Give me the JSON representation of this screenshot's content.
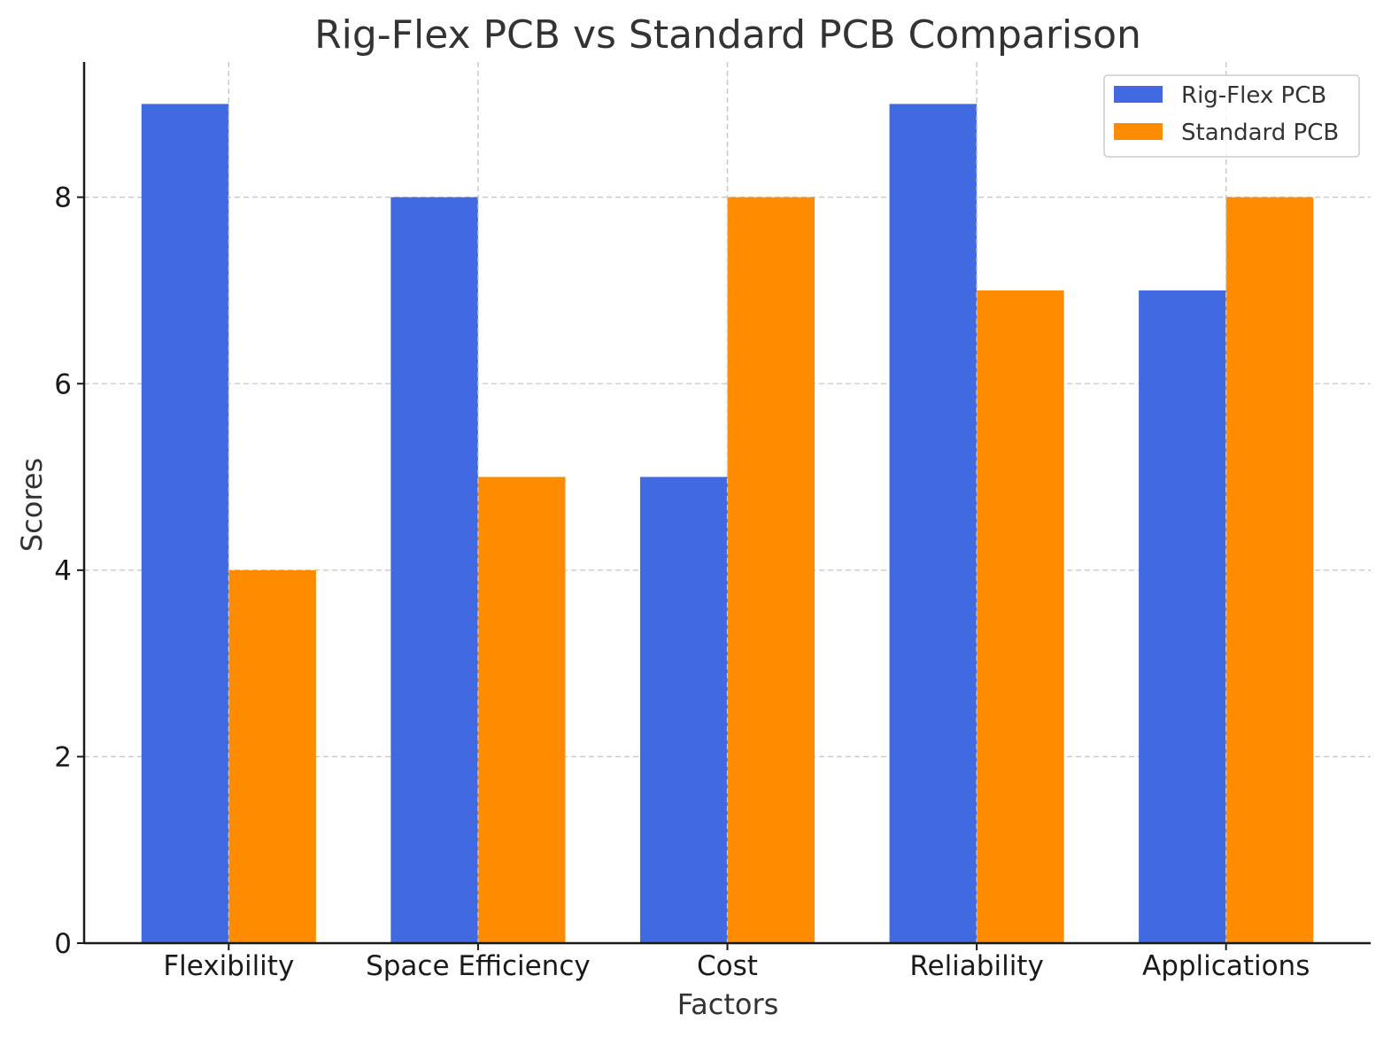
{
  "chart_data": {
    "type": "bar",
    "title": "Rig-Flex PCB vs Standard PCB Comparison",
    "xlabel": "Factors",
    "ylabel": "Scores",
    "categories": [
      "Flexibility",
      "Space Efficiency",
      "Cost",
      "Reliability",
      "Applications"
    ],
    "series": [
      {
        "name": "Rig-Flex PCB",
        "values": [
          9,
          8,
          5,
          9,
          7
        ],
        "color": "#4169e1"
      },
      {
        "name": "Standard PCB",
        "values": [
          4,
          5,
          8,
          7,
          8
        ],
        "color": "#ff8c00"
      }
    ],
    "ylim": [
      0,
      9.45
    ],
    "yticks": [
      "0",
      "2",
      "4",
      "6",
      "8"
    ],
    "grid": true,
    "legend_position": "top-right"
  }
}
